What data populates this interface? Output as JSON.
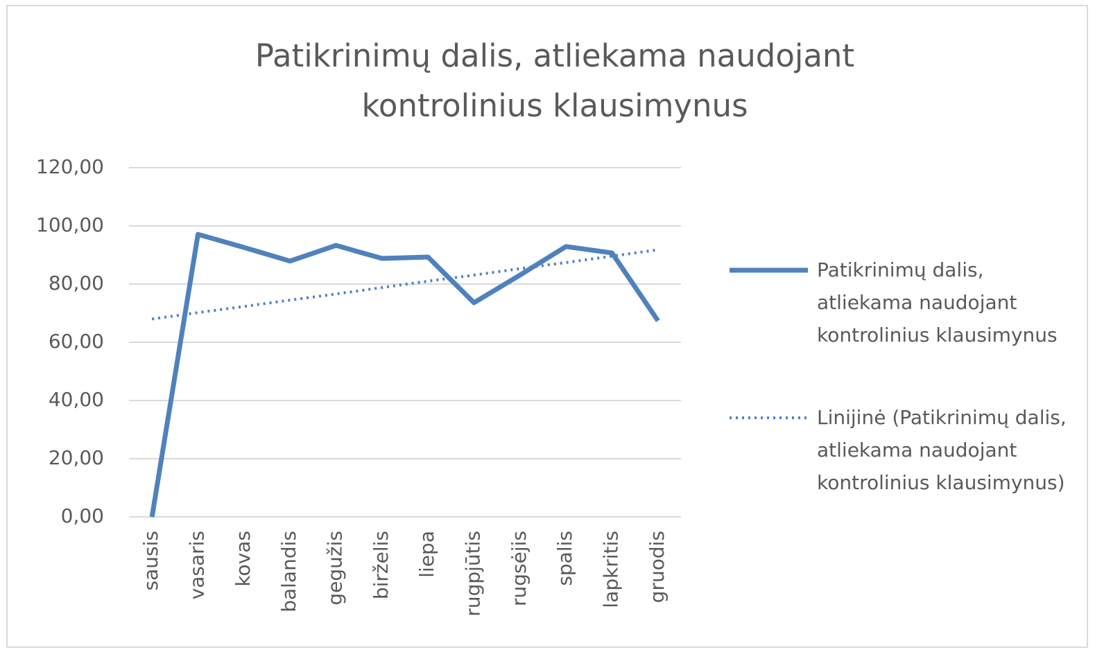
{
  "chart_data": {
    "type": "line",
    "title": "Patikrinimų dalis, atliekama naudojant kontrolinius klausimynus",
    "categories": [
      "sausis",
      "vasaris",
      "kovas",
      "balandis",
      "gegužis",
      "birželis",
      "liepa",
      "rugpjūtis",
      "rugsėjis",
      "spalis",
      "lapkritis",
      "gruodis"
    ],
    "series": [
      {
        "name": "Patikrinimų dalis, atliekama naudojant kontrolinius klausimynus",
        "color": "#4f81bd",
        "style": "solid",
        "values": [
          0,
          97.1,
          92.6,
          87.9,
          93.3,
          88.8,
          89.3,
          73.6,
          83.1,
          92.9,
          90.7,
          67.4
        ]
      },
      {
        "name": "Linijinė (Patikrinimų dalis, atliekama naudojant kontrolinius klausimynus)",
        "color": "#4f81bd",
        "style": "dotted",
        "values": [
          68.0,
          70.2,
          72.3,
          74.5,
          76.6,
          78.8,
          81.0,
          83.1,
          85.3,
          87.4,
          89.6,
          91.8
        ]
      }
    ],
    "ylim": [
      0,
      120
    ],
    "yticks": [
      {
        "value": 0,
        "label": "0,00"
      },
      {
        "value": 20,
        "label": "20,00"
      },
      {
        "value": 40,
        "label": "40,00"
      },
      {
        "value": 60,
        "label": "60,00"
      },
      {
        "value": 80,
        "label": "80,00"
      },
      {
        "value": 100,
        "label": "100,00"
      },
      {
        "value": 120,
        "label": "120,00"
      }
    ],
    "grid": true,
    "legend": "right"
  }
}
